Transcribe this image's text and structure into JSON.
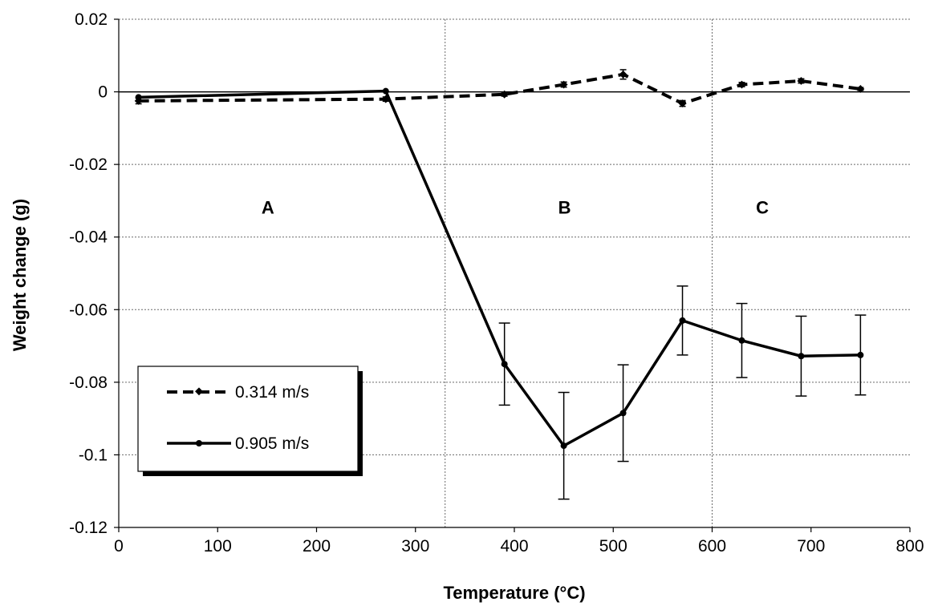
{
  "chart_data": {
    "type": "line",
    "xlabel": "Temperature (°C)",
    "ylabel": "Weight change (g)",
    "xlim": [
      0,
      800
    ],
    "ylim": [
      -0.12,
      0.02
    ],
    "xticks": [
      0,
      100,
      200,
      300,
      400,
      500,
      600,
      700,
      800
    ],
    "yticks": [
      0.02,
      0,
      -0.02,
      -0.04,
      -0.06,
      -0.08,
      -0.1,
      -0.12
    ],
    "xtick_labels": [
      "0",
      "100",
      "200",
      "300",
      "400",
      "500",
      "600",
      "700",
      "800"
    ],
    "ytick_labels": [
      "0.02",
      "0",
      "-0.02",
      "-0.04",
      "-0.06",
      "-0.08",
      "-0.1",
      "-0.12"
    ],
    "grid": "horizontal dotted",
    "vertical_dividers": [
      330,
      600
    ],
    "regions": [
      {
        "label": "A",
        "x": 150
      },
      {
        "label": "B",
        "x": 450
      },
      {
        "label": "C",
        "x": 650
      }
    ],
    "series": [
      {
        "name": "0.314 m/s",
        "style": "dashed",
        "marker": "diamond",
        "color": "#000000",
        "x": [
          20,
          270,
          390,
          450,
          510,
          570,
          630,
          690,
          750
        ],
        "y": [
          -0.0025,
          -0.002,
          -0.0007,
          0.002,
          0.0048,
          -0.0032,
          0.002,
          0.003,
          0.0008
        ],
        "err": [
          0.0008,
          0.0006,
          0.0005,
          0.0007,
          0.0013,
          0.0008,
          0.0006,
          0.0006,
          0.0004
        ]
      },
      {
        "name": "0.905 m/s",
        "style": "solid",
        "marker": "circle",
        "color": "#000000",
        "x": [
          20,
          270,
          390,
          450,
          510,
          570,
          630,
          690,
          750
        ],
        "y": [
          -0.0015,
          0.0002,
          -0.075,
          -0.0975,
          -0.0885,
          -0.063,
          -0.0685,
          -0.0728,
          -0.0725
        ],
        "err": [
          0,
          0,
          0.0113,
          0.0147,
          0.0133,
          0.0095,
          0.0102,
          0.011,
          0.011
        ]
      }
    ],
    "legend": {
      "placement": "lower-left",
      "entries": [
        "0.314 m/s",
        "0.905 m/s"
      ]
    }
  }
}
